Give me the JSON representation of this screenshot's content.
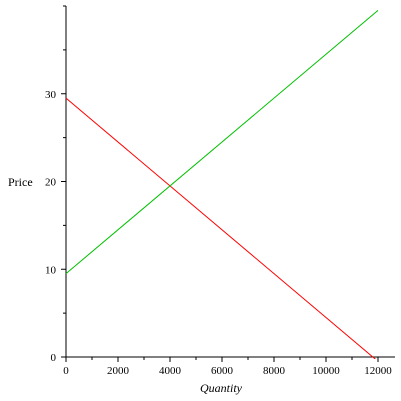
{
  "chart_data": {
    "type": "line",
    "title": "",
    "xlabel": "Quantity",
    "ylabel": "Price",
    "xlim": [
      0,
      12000
    ],
    "ylim": [
      0,
      40
    ],
    "x_ticks": [
      0,
      2000,
      4000,
      6000,
      8000,
      10000,
      12000
    ],
    "y_ticks": [
      0,
      10,
      20,
      30
    ],
    "x_minor_step": 1000,
    "y_minor_step": 5,
    "grid": false,
    "legend": "none",
    "series": [
      {
        "color": "#ff0000",
        "x": [
          0,
          12000
        ],
        "y": [
          29.5,
          -0.5
        ]
      },
      {
        "color": "#00c000",
        "x": [
          0,
          12000
        ],
        "y": [
          9.5,
          39.5
        ]
      }
    ]
  }
}
